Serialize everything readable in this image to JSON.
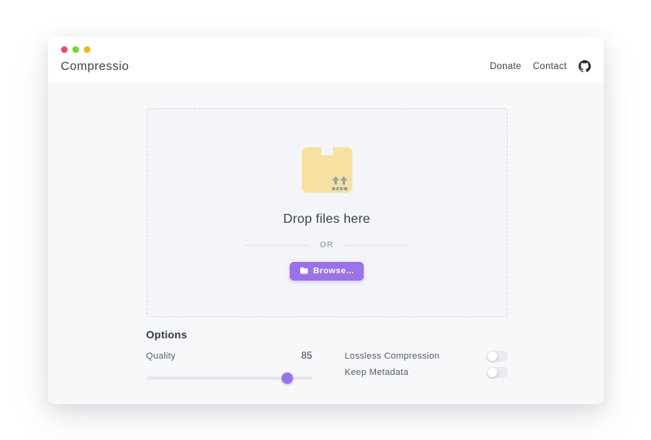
{
  "window": {
    "traffic_lights": [
      {
        "name": "red",
        "color": "#f0495c"
      },
      {
        "name": "green",
        "color": "#72d62a"
      },
      {
        "name": "yellow",
        "color": "#f3b515"
      }
    ]
  },
  "header": {
    "title": "Compressio",
    "nav": [
      {
        "label": "Donate"
      },
      {
        "label": "Contact"
      }
    ]
  },
  "dropzone": {
    "heading": "Drop files here",
    "or_label": "OR",
    "browse_label": "Browse..."
  },
  "options": {
    "heading": "Options",
    "quality": {
      "label": "Quality",
      "value": 85,
      "min": 0,
      "max": 100
    },
    "toggles": [
      {
        "label": "Lossless Compression",
        "on": false
      },
      {
        "label": "Keep Metadata",
        "on": false
      }
    ]
  },
  "colors": {
    "accent_purple": "#9b72e8",
    "box_yellow": "#f6e1a1",
    "body_background": "#f7f8fa",
    "dropzone_background": "#f3f5f9"
  }
}
